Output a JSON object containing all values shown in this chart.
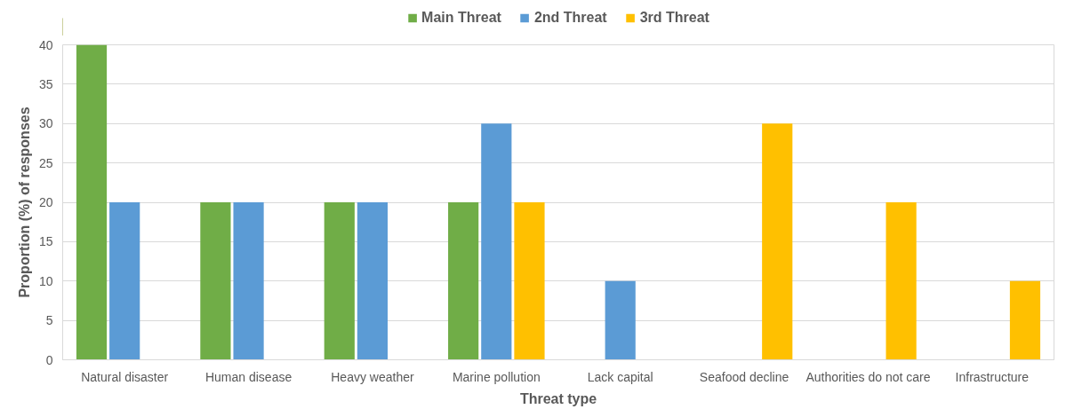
{
  "chart_data": {
    "type": "bar",
    "xlabel": "Threat type",
    "ylabel": "Proportion (%) of responses",
    "categories": [
      "Natural disaster",
      "Human disease",
      "Heavy weather",
      "Marine pollution",
      "Lack capital",
      "Seafood decline",
      "Authorities do not care",
      "Infrastructure"
    ],
    "series": [
      {
        "name": "Main Threat",
        "color": "#70ad47",
        "values": [
          40,
          20,
          20,
          20,
          null,
          null,
          null,
          null
        ]
      },
      {
        "name": "2nd Threat",
        "color": "#5b9bd5",
        "values": [
          20,
          20,
          20,
          30,
          10,
          null,
          null,
          null
        ]
      },
      {
        "name": "3rd Threat",
        "color": "#ffc000",
        "values": [
          null,
          null,
          null,
          20,
          null,
          30,
          20,
          10
        ]
      }
    ],
    "ylim": [
      0,
      40
    ],
    "yticks": [
      0,
      5,
      10,
      15,
      20,
      25,
      30,
      35,
      40
    ],
    "grid": "y",
    "legend": "top"
  }
}
